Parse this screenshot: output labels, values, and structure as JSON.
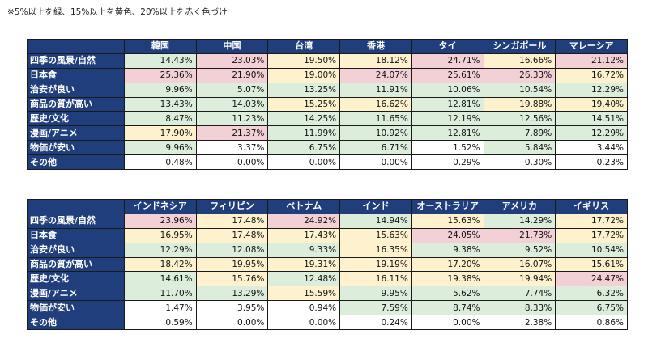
{
  "note": "※5%以上を緑、15%以上を黄色、20%以上を赤く色づけ",
  "colors": {
    "header_bg": "#203e7c",
    "green": "#dceddc",
    "yellow": "#fdf2cd",
    "red": "#f3cfd6",
    "white": "#ffffff"
  },
  "rows": [
    "四季の風景/自然",
    "日本食",
    "治安が良い",
    "商品の質が高い",
    "歴史/文化",
    "漫画/アニメ",
    "物価が安い",
    "その他"
  ],
  "tables": [
    {
      "countries": [
        "韓国",
        "中国",
        "台湾",
        "香港",
        "タイ",
        "シンガポール",
        "マレーシア"
      ],
      "values": [
        [
          {
            "v": "14.43%",
            "c": "g"
          },
          {
            "v": "23.03%",
            "c": "r"
          },
          {
            "v": "19.50%",
            "c": "y"
          },
          {
            "v": "18.12%",
            "c": "y"
          },
          {
            "v": "24.71%",
            "c": "r"
          },
          {
            "v": "16.66%",
            "c": "y"
          },
          {
            "v": "21.12%",
            "c": "r"
          }
        ],
        [
          {
            "v": "25.36%",
            "c": "r"
          },
          {
            "v": "21.90%",
            "c": "r"
          },
          {
            "v": "19.00%",
            "c": "y"
          },
          {
            "v": "24.07%",
            "c": "r"
          },
          {
            "v": "25.61%",
            "c": "r"
          },
          {
            "v": "26.33%",
            "c": "r"
          },
          {
            "v": "16.72%",
            "c": "y"
          }
        ],
        [
          {
            "v": "9.96%",
            "c": "g"
          },
          {
            "v": "5.07%",
            "c": "g"
          },
          {
            "v": "13.25%",
            "c": "g"
          },
          {
            "v": "11.91%",
            "c": "g"
          },
          {
            "v": "10.06%",
            "c": "g"
          },
          {
            "v": "10.54%",
            "c": "g"
          },
          {
            "v": "12.29%",
            "c": "g"
          }
        ],
        [
          {
            "v": "13.43%",
            "c": "g"
          },
          {
            "v": "14.03%",
            "c": "g"
          },
          {
            "v": "15.25%",
            "c": "y"
          },
          {
            "v": "16.62%",
            "c": "y"
          },
          {
            "v": "12.81%",
            "c": "g"
          },
          {
            "v": "19.88%",
            "c": "y"
          },
          {
            "v": "19.40%",
            "c": "y"
          }
        ],
        [
          {
            "v": "8.47%",
            "c": "g"
          },
          {
            "v": "11.23%",
            "c": "g"
          },
          {
            "v": "14.25%",
            "c": "g"
          },
          {
            "v": "11.65%",
            "c": "g"
          },
          {
            "v": "12.19%",
            "c": "g"
          },
          {
            "v": "12.56%",
            "c": "g"
          },
          {
            "v": "14.51%",
            "c": "g"
          }
        ],
        [
          {
            "v": "17.90%",
            "c": "y"
          },
          {
            "v": "21.37%",
            "c": "r"
          },
          {
            "v": "11.99%",
            "c": "g"
          },
          {
            "v": "10.92%",
            "c": "g"
          },
          {
            "v": "12.81%",
            "c": "g"
          },
          {
            "v": "7.89%",
            "c": "g"
          },
          {
            "v": "12.29%",
            "c": "g"
          }
        ],
        [
          {
            "v": "9.96%",
            "c": "g"
          },
          {
            "v": "3.37%",
            "c": "w"
          },
          {
            "v": "6.75%",
            "c": "g"
          },
          {
            "v": "6.71%",
            "c": "g"
          },
          {
            "v": "1.52%",
            "c": "w"
          },
          {
            "v": "5.84%",
            "c": "g"
          },
          {
            "v": "3.44%",
            "c": "w"
          }
        ],
        [
          {
            "v": "0.48%",
            "c": "w"
          },
          {
            "v": "0.00%",
            "c": "w"
          },
          {
            "v": "0.00%",
            "c": "w"
          },
          {
            "v": "0.00%",
            "c": "w"
          },
          {
            "v": "0.29%",
            "c": "w"
          },
          {
            "v": "0.30%",
            "c": "w"
          },
          {
            "v": "0.23%",
            "c": "w"
          }
        ]
      ]
    },
    {
      "countries": [
        "インドネシア",
        "フィリピン",
        "ベトナム",
        "インド",
        "オーストラリア",
        "アメリカ",
        "イギリス"
      ],
      "values": [
        [
          {
            "v": "23.96%",
            "c": "r"
          },
          {
            "v": "17.48%",
            "c": "y"
          },
          {
            "v": "24.92%",
            "c": "r"
          },
          {
            "v": "14.94%",
            "c": "g"
          },
          {
            "v": "15.63%",
            "c": "y"
          },
          {
            "v": "14.29%",
            "c": "g"
          },
          {
            "v": "17.72%",
            "c": "y"
          }
        ],
        [
          {
            "v": "16.95%",
            "c": "y"
          },
          {
            "v": "17.48%",
            "c": "y"
          },
          {
            "v": "17.43%",
            "c": "y"
          },
          {
            "v": "15.63%",
            "c": "y"
          },
          {
            "v": "24.05%",
            "c": "r"
          },
          {
            "v": "21.73%",
            "c": "r"
          },
          {
            "v": "17.72%",
            "c": "y"
          }
        ],
        [
          {
            "v": "12.29%",
            "c": "g"
          },
          {
            "v": "12.08%",
            "c": "g"
          },
          {
            "v": "9.33%",
            "c": "g"
          },
          {
            "v": "16.35%",
            "c": "y"
          },
          {
            "v": "9.38%",
            "c": "g"
          },
          {
            "v": "9.52%",
            "c": "g"
          },
          {
            "v": "10.54%",
            "c": "g"
          }
        ],
        [
          {
            "v": "18.42%",
            "c": "y"
          },
          {
            "v": "19.95%",
            "c": "y"
          },
          {
            "v": "19.31%",
            "c": "y"
          },
          {
            "v": "19.19%",
            "c": "y"
          },
          {
            "v": "17.20%",
            "c": "y"
          },
          {
            "v": "16.07%",
            "c": "y"
          },
          {
            "v": "15.61%",
            "c": "y"
          }
        ],
        [
          {
            "v": "14.61%",
            "c": "g"
          },
          {
            "v": "15.76%",
            "c": "y"
          },
          {
            "v": "12.48%",
            "c": "g"
          },
          {
            "v": "16.11%",
            "c": "y"
          },
          {
            "v": "19.38%",
            "c": "y"
          },
          {
            "v": "19.94%",
            "c": "y"
          },
          {
            "v": "24.47%",
            "c": "r"
          }
        ],
        [
          {
            "v": "11.70%",
            "c": "g"
          },
          {
            "v": "13.29%",
            "c": "g"
          },
          {
            "v": "15.59%",
            "c": "y"
          },
          {
            "v": "9.95%",
            "c": "g"
          },
          {
            "v": "5.62%",
            "c": "g"
          },
          {
            "v": "7.74%",
            "c": "g"
          },
          {
            "v": "6.32%",
            "c": "g"
          }
        ],
        [
          {
            "v": "1.47%",
            "c": "w"
          },
          {
            "v": "3.95%",
            "c": "w"
          },
          {
            "v": "0.94%",
            "c": "w"
          },
          {
            "v": "7.59%",
            "c": "g"
          },
          {
            "v": "8.74%",
            "c": "g"
          },
          {
            "v": "8.33%",
            "c": "g"
          },
          {
            "v": "6.75%",
            "c": "g"
          }
        ],
        [
          {
            "v": "0.59%",
            "c": "w"
          },
          {
            "v": "0.00%",
            "c": "w"
          },
          {
            "v": "0.00%",
            "c": "w"
          },
          {
            "v": "0.24%",
            "c": "w"
          },
          {
            "v": "0.00%",
            "c": "w"
          },
          {
            "v": "2.38%",
            "c": "w"
          },
          {
            "v": "0.86%",
            "c": "w"
          }
        ]
      ]
    }
  ]
}
